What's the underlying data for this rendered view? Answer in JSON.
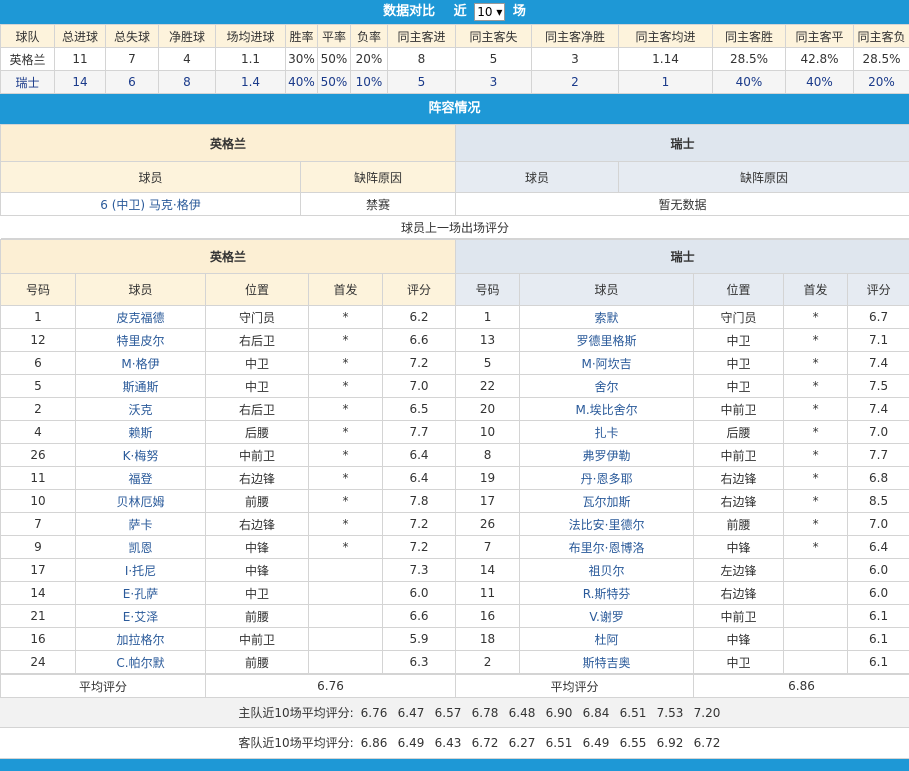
{
  "stats": {
    "title": "数据对比",
    "near": "近",
    "games": "10",
    "unit": "场",
    "headers": [
      "球队",
      "总进球",
      "总失球",
      "净胜球",
      "场均进球",
      "胜率",
      "平率",
      "负率",
      "同主客进",
      "同主客失",
      "同主客净胜",
      "同主客均进",
      "同主客胜",
      "同主客平",
      "同主客负"
    ],
    "rows": [
      [
        "英格兰",
        "11",
        "7",
        "4",
        "1.1",
        "30%",
        "50%",
        "20%",
        "8",
        "5",
        "3",
        "1.14",
        "28.5%",
        "42.8%",
        "28.5%"
      ],
      [
        "瑞士",
        "14",
        "6",
        "8",
        "1.4",
        "40%",
        "50%",
        "10%",
        "5",
        "3",
        "2",
        "1",
        "40%",
        "40%",
        "20%"
      ]
    ]
  },
  "lineup": {
    "title": "阵容情况",
    "home": "英格兰",
    "away": "瑞士",
    "player_col": "球员",
    "reason_col": "缺阵原因",
    "home_absent": {
      "player": "6 (中卫) 马克·格伊",
      "reason": "禁赛"
    },
    "away_absent": "暂无数据"
  },
  "ratings": {
    "title": "球员上一场出场评分",
    "home": "英格兰",
    "away": "瑞士",
    "cols": [
      "号码",
      "球员",
      "位置",
      "首发",
      "评分"
    ],
    "home_players": [
      [
        "1",
        "皮克福德",
        "守门员",
        "*",
        "6.2"
      ],
      [
        "12",
        "特里皮尔",
        "右后卫",
        "*",
        "6.6"
      ],
      [
        "6",
        "M·格伊",
        "中卫",
        "*",
        "7.2"
      ],
      [
        "5",
        "斯通斯",
        "中卫",
        "*",
        "7.0"
      ],
      [
        "2",
        "沃克",
        "右后卫",
        "*",
        "6.5"
      ],
      [
        "4",
        "赖斯",
        "后腰",
        "*",
        "7.7"
      ],
      [
        "26",
        "K·梅努",
        "中前卫",
        "*",
        "6.4"
      ],
      [
        "11",
        "福登",
        "右边锋",
        "*",
        "6.4"
      ],
      [
        "10",
        "贝林厄姆",
        "前腰",
        "*",
        "7.8"
      ],
      [
        "7",
        "萨卡",
        "右边锋",
        "*",
        "7.2"
      ],
      [
        "9",
        "凯恩",
        "中锋",
        "*",
        "7.2"
      ],
      [
        "17",
        "I·托尼",
        "中锋",
        "",
        "7.3"
      ],
      [
        "14",
        "E·孔萨",
        "中卫",
        "",
        "6.0"
      ],
      [
        "21",
        "E·艾泽",
        "前腰",
        "",
        "6.6"
      ],
      [
        "16",
        "加拉格尔",
        "中前卫",
        "",
        "5.9"
      ],
      [
        "24",
        "C.帕尔默",
        "前腰",
        "",
        "6.3"
      ]
    ],
    "away_players": [
      [
        "1",
        "索默",
        "守门员",
        "*",
        "6.7"
      ],
      [
        "13",
        "罗德里格斯",
        "中卫",
        "*",
        "7.1"
      ],
      [
        "5",
        "M·阿坎吉",
        "中卫",
        "*",
        "7.4"
      ],
      [
        "22",
        "舍尔",
        "中卫",
        "*",
        "7.5"
      ],
      [
        "20",
        "M.埃比舍尔",
        "中前卫",
        "*",
        "7.4"
      ],
      [
        "10",
        "扎卡",
        "后腰",
        "*",
        "7.0"
      ],
      [
        "8",
        "弗罗伊勒",
        "中前卫",
        "*",
        "7.7"
      ],
      [
        "19",
        "丹·恩多耶",
        "右边锋",
        "*",
        "6.8"
      ],
      [
        "17",
        "瓦尔加斯",
        "右边锋",
        "*",
        "8.5"
      ],
      [
        "26",
        "法比安·里德尔",
        "前腰",
        "*",
        "7.0"
      ],
      [
        "7",
        "布里尔·恩博洛",
        "中锋",
        "*",
        "6.4"
      ],
      [
        "14",
        "祖贝尔",
        "左边锋",
        "",
        "6.0"
      ],
      [
        "11",
        "R.斯特芬",
        "右边锋",
        "",
        "6.0"
      ],
      [
        "16",
        "V.谢罗",
        "中前卫",
        "",
        "6.1"
      ],
      [
        "18",
        "杜阿",
        "中锋",
        "",
        "6.1"
      ],
      [
        "2",
        "斯特吉奥",
        "中卫",
        "",
        "6.1"
      ]
    ],
    "avg_label": "平均评分",
    "home_avg": "6.76",
    "away_avg": "6.86",
    "home_recent_label": "主队近10场平均评分:",
    "home_recent": [
      "6.76",
      "6.47",
      "6.57",
      "6.78",
      "6.48",
      "6.90",
      "6.84",
      "6.51",
      "7.53",
      "7.20"
    ],
    "away_recent_label": "客队近10场平均评分:",
    "away_recent": [
      "6.86",
      "6.49",
      "6.43",
      "6.72",
      "6.27",
      "6.51",
      "6.49",
      "6.55",
      "6.92",
      "6.72"
    ]
  },
  "colors": {
    "bar": "#1e98d6",
    "home_header": "#fcefd4",
    "away_header": "#dfe6ee",
    "player_link": "#2a5a9a"
  }
}
